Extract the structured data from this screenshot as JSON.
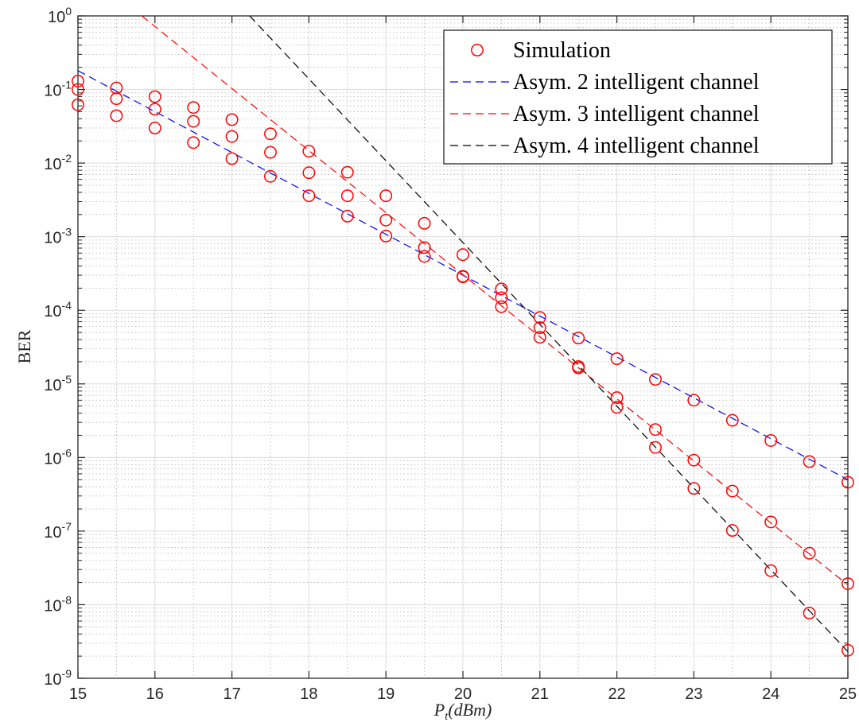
{
  "chart_data": {
    "type": "line",
    "xlabel_base": "P",
    "xlabel_sub": "t",
    "xlabel_rest": "(dBm)",
    "ylabel": "BER",
    "xlim": [
      15,
      25
    ],
    "ylim": [
      1e-09,
      1
    ],
    "yscale": "log",
    "grid": true,
    "minor_grid": true,
    "legend_position": "top-right",
    "x_ticks": [
      "15",
      "16",
      "17",
      "18",
      "19",
      "20",
      "21",
      "22",
      "23",
      "24",
      "25"
    ],
    "y_ticks": [
      {
        "base": "10",
        "exp": "0"
      },
      {
        "base": "10",
        "exp": "-1"
      },
      {
        "base": "10",
        "exp": "-2"
      },
      {
        "base": "10",
        "exp": "-3"
      },
      {
        "base": "10",
        "exp": "-4"
      },
      {
        "base": "10",
        "exp": "-5"
      },
      {
        "base": "10",
        "exp": "-6"
      },
      {
        "base": "10",
        "exp": "-7"
      },
      {
        "base": "10",
        "exp": "-8"
      },
      {
        "base": "10",
        "exp": "-9"
      }
    ],
    "series": [
      {
        "name": "Simulation",
        "style": "markers",
        "marker": "circle",
        "color": "#ff0000",
        "points": [
          [
            15,
            0.13
          ],
          [
            15,
            0.1
          ],
          [
            15,
            0.062
          ],
          [
            15.5,
            0.105
          ],
          [
            15.5,
            0.075
          ],
          [
            15.5,
            0.044
          ],
          [
            16,
            0.08
          ],
          [
            16,
            0.054
          ],
          [
            16,
            0.03
          ],
          [
            16.5,
            0.057
          ],
          [
            16.5,
            0.037
          ],
          [
            16.5,
            0.019
          ],
          [
            17,
            0.039
          ],
          [
            17,
            0.023
          ],
          [
            17,
            0.0115
          ],
          [
            17.5,
            0.025
          ],
          [
            17.5,
            0.014
          ],
          [
            17.5,
            0.0066
          ],
          [
            18,
            0.0145
          ],
          [
            18,
            0.0074
          ],
          [
            18,
            0.0036
          ],
          [
            18.5,
            0.0075
          ],
          [
            18.5,
            0.0036
          ],
          [
            18.5,
            0.0019
          ],
          [
            19,
            0.0036
          ],
          [
            19,
            0.00168
          ],
          [
            19,
            0.00102
          ],
          [
            19.5,
            0.00152
          ],
          [
            19.5,
            0.00071
          ],
          [
            19.5,
            0.00054
          ],
          [
            20,
            0.00057
          ],
          [
            20,
            0.00029
          ],
          [
            20,
            0.000285
          ],
          [
            20.5,
            0.000195
          ],
          [
            20.5,
            0.000148
          ],
          [
            20.5,
            0.000112
          ],
          [
            21,
            8e-05
          ],
          [
            21,
            5.8e-05
          ],
          [
            21,
            4.3e-05
          ],
          [
            21.5,
            4.2e-05
          ],
          [
            21.5,
            1.72e-05
          ],
          [
            21.5,
            1.65e-05
          ],
          [
            22,
            2.2e-05
          ],
          [
            22,
            6.5e-06
          ],
          [
            22,
            4.8e-06
          ],
          [
            22.5,
            1.15e-05
          ],
          [
            22.5,
            2.4e-06
          ],
          [
            22.5,
            1.37e-06
          ],
          [
            23,
            6e-06
          ],
          [
            23,
            9.2e-07
          ],
          [
            23,
            3.8e-07
          ],
          [
            23.5,
            3.2e-06
          ],
          [
            23.5,
            3.5e-07
          ],
          [
            23.5,
            1.02e-07
          ],
          [
            24,
            1.7e-06
          ],
          [
            24,
            1.33e-07
          ],
          [
            24,
            2.9e-08
          ],
          [
            24.5,
            8.8e-07
          ],
          [
            24.5,
            5e-08
          ],
          [
            24.5,
            7.7e-09
          ],
          [
            25,
            4.6e-07
          ],
          [
            25,
            1.93e-08
          ],
          [
            25,
            2.4e-09
          ]
        ]
      },
      {
        "name": "Asym.  2 intelligent channel",
        "style": "dashed",
        "color": "#0000ff",
        "x": [
          15,
          25
        ],
        "y": [
          0.18,
          5e-07
        ]
      },
      {
        "name": "Asym.  3 intelligent channel",
        "style": "dashed",
        "color": "#ff0000",
        "x": [
          15.83,
          25
        ],
        "y": [
          1.0,
          1.85e-08
        ]
      },
      {
        "name": "Asym.  4 intelligent channel",
        "style": "dashed",
        "color": "#000000",
        "x": [
          17.23,
          25
        ],
        "y": [
          1.0,
          2.3e-09
        ]
      }
    ]
  }
}
